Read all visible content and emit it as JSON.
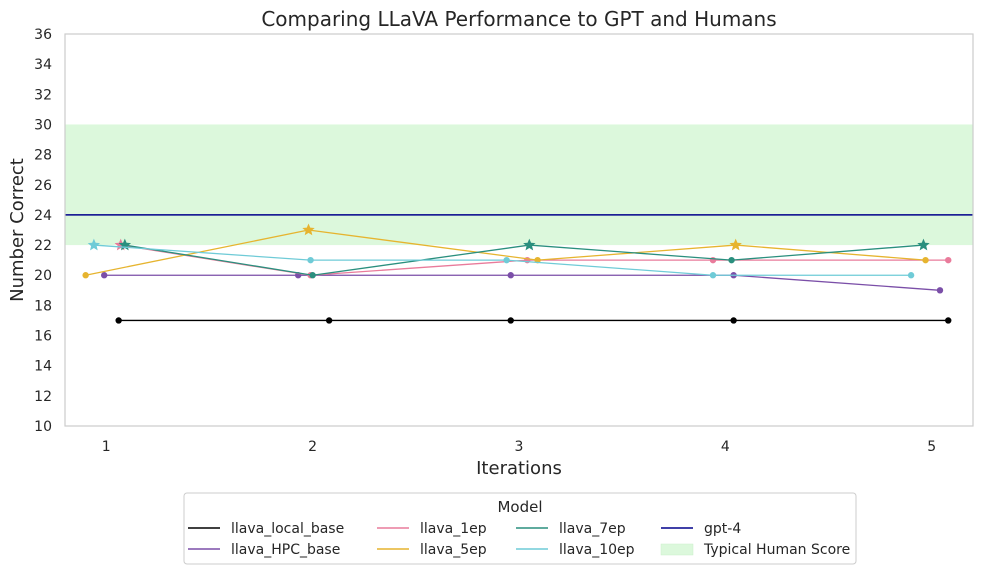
{
  "chart_data": {
    "type": "line",
    "title": "Comparing LLaVA Performance to GPT and Humans",
    "xlabel": "Iterations",
    "ylabel": "Number Correct",
    "x_ticks": [
      1,
      2,
      3,
      4,
      5
    ],
    "y_ticks": [
      10,
      12,
      14,
      16,
      18,
      20,
      22,
      24,
      26,
      28,
      30,
      32,
      34,
      36
    ],
    "xlim": [
      0.8,
      5.2
    ],
    "ylim": [
      10,
      36
    ],
    "grid": false,
    "legend": {
      "title": "Model",
      "placement": "bottom-center"
    },
    "human_band": {
      "name": "Typical Human Score",
      "range": [
        22,
        30
      ],
      "color": "#dcf8dc"
    },
    "reference_lines": [
      {
        "name": "gpt-4",
        "value": 24,
        "color": "#00008b"
      }
    ],
    "series": [
      {
        "name": "llava_local_base",
        "color": "#000000",
        "x": [
          1.06,
          2.08,
          2.96,
          4.04,
          5.08
        ],
        "y": [
          17,
          17,
          17,
          17,
          17
        ],
        "star": []
      },
      {
        "name": "llava_HPC_base",
        "color": "#7b4fa8",
        "x": [
          0.99,
          1.93,
          2.96,
          4.04,
          5.04
        ],
        "y": [
          20,
          20,
          20,
          20,
          19
        ],
        "star": []
      },
      {
        "name": "llava_1ep",
        "color": "#e97b9b",
        "x": [
          1.07,
          1.99,
          3.04,
          3.94,
          5.08
        ],
        "y": [
          22,
          20,
          21,
          21,
          21
        ],
        "star": [
          0
        ]
      },
      {
        "name": "llava_5ep",
        "color": "#e6b42f",
        "x": [
          0.9,
          1.98,
          3.09,
          4.05,
          4.97
        ],
        "y": [
          20,
          23,
          21,
          22,
          21
        ],
        "star": [
          1,
          3
        ]
      },
      {
        "name": "llava_7ep",
        "color": "#2a8f7e",
        "x": [
          1.09,
          2.0,
          3.05,
          4.03,
          4.96
        ],
        "y": [
          22,
          20,
          22,
          21,
          22
        ],
        "star": [
          0,
          2,
          4
        ]
      },
      {
        "name": "llava_10ep",
        "color": "#6fcbd7",
        "x": [
          0.94,
          1.99,
          2.94,
          3.94,
          4.9
        ],
        "y": [
          22,
          21,
          21,
          20,
          20
        ],
        "star": [
          0
        ]
      }
    ]
  }
}
